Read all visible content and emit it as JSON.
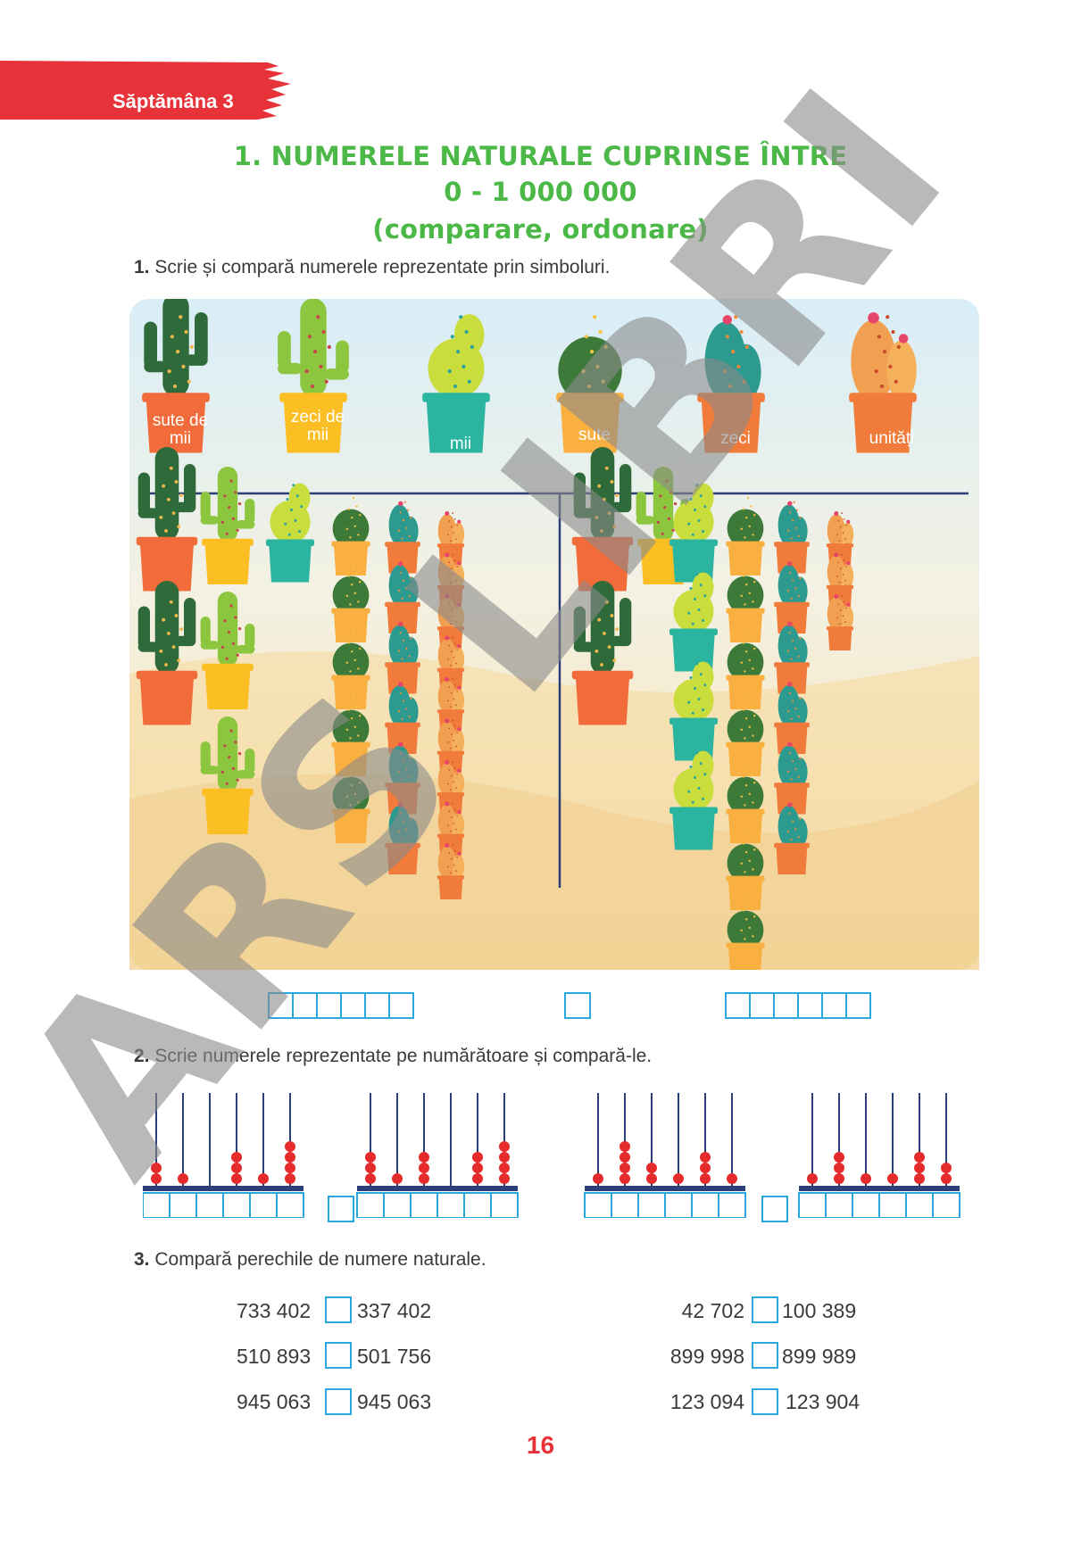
{
  "header": {
    "week_label": "Săptămâna 3"
  },
  "title": {
    "line1": "1. NUMERELE NATURALE CUPRINSE ÎNTRE",
    "line2": "0 - 1 000 000",
    "line3": "(comparare, ordonare)"
  },
  "exercise1": {
    "number": "1.",
    "instruction": "Scrie și compară numerele reprezentate prin simboluri.",
    "legend": [
      {
        "label": "sute de mii",
        "pot_color": "#f26b3a",
        "cactus": "tall-dark-green"
      },
      {
        "label": "zeci de mii",
        "pot_color": "#fbbf24",
        "cactus": "light-green-arms"
      },
      {
        "label": "mii",
        "pot_color": "#2bb5a0",
        "cactus": "yellow-green"
      },
      {
        "label": "sute",
        "pot_color": "#f9b040",
        "cactus": "round-dark-green"
      },
      {
        "label": "zeci",
        "pot_color": "#f07b3a",
        "cactus": "teal-flower"
      },
      {
        "label": "unități",
        "pot_color": "#f07b3a",
        "cactus": "orange-flower"
      }
    ],
    "left_group_counts": [
      2,
      3,
      1,
      5,
      6,
      9
    ],
    "right_group_counts": [
      2,
      1,
      4,
      7,
      6,
      3
    ]
  },
  "exercise2": {
    "number": "2.",
    "instruction": "Scrie numerele reprezentate pe numărătoare și compară-le.",
    "abacus_bead_counts": [
      [
        2,
        1,
        0,
        3,
        1,
        4
      ],
      [
        3,
        1,
        3,
        0,
        3,
        4
      ],
      [
        1,
        4,
        2,
        1,
        3,
        1
      ],
      [
        1,
        3,
        1,
        1,
        3,
        2
      ]
    ],
    "bead_color": "#e52b2b"
  },
  "exercise3": {
    "number": "3.",
    "instruction": "Compară perechile de numere naturale.",
    "pairs_left": [
      {
        "a": "733 402",
        "b": "337 402"
      },
      {
        "a": "510 893",
        "b": "501 756"
      },
      {
        "a": "945 063",
        "b": "945 063"
      }
    ],
    "pairs_right": [
      {
        "a": "42 702",
        "b": "100 389"
      },
      {
        "a": "899 998",
        "b": "899 989"
      },
      {
        "a": "123 094",
        "b": "123 904"
      }
    ]
  },
  "watermark": "ARS LIBRI",
  "page_number": "16",
  "colors": {
    "accent_red": "#e63238",
    "title_green": "#4cb848",
    "box_blue": "#29a8e0"
  }
}
